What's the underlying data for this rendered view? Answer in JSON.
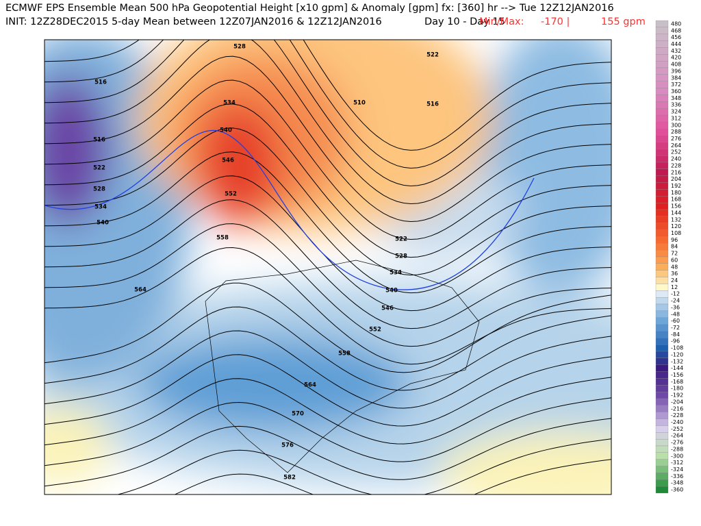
{
  "header": {
    "line1": "ECMWF EPS Ensemble Mean 500 hPa Geopotential Height [x10 gpm] & Anomaly [gpm] fx: [360] hr --> Tue 12Z12JAN2016",
    "line2": "INIT: 12Z28DEC2015 5-day Mean between 12Z07JAN2016 & 12Z12JAN2016",
    "day": "Day 10 - Day 15",
    "minmax": "Min/Max:",
    "min": "-170 |",
    "max": "155 gpm"
  },
  "contour_labels": [
    516,
    516,
    522,
    528,
    534,
    540,
    564,
    528,
    534,
    540,
    546,
    552,
    558,
    510,
    516,
    522,
    522,
    528,
    534,
    540,
    546,
    552,
    558,
    564,
    570,
    576,
    582
  ],
  "colorbar": [
    480,
    468,
    456,
    444,
    432,
    420,
    408,
    396,
    384,
    372,
    360,
    348,
    336,
    324,
    312,
    300,
    288,
    276,
    264,
    252,
    240,
    228,
    216,
    204,
    192,
    180,
    168,
    156,
    144,
    132,
    120,
    108,
    96,
    84,
    72,
    60,
    48,
    36,
    24,
    12,
    -12,
    -24,
    -36,
    -48,
    -60,
    -72,
    -84,
    -96,
    -108,
    -120,
    -132,
    -144,
    -156,
    -168,
    -180,
    -192,
    -204,
    -216,
    -228,
    -240,
    -252,
    -264,
    -276,
    -288,
    -300,
    -312,
    -324,
    -336,
    -348,
    -360
  ]
}
